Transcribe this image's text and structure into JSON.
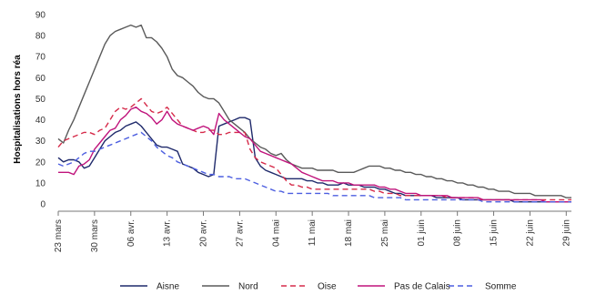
{
  "chart_data": {
    "type": "line",
    "ylabel": "Hospitalisations hors réa",
    "ylim": [
      0,
      90
    ],
    "yticks": [
      0,
      10,
      20,
      30,
      40,
      50,
      60,
      70,
      80,
      90
    ],
    "xticks": [
      "23 mars",
      "30 mars",
      "06 avr.",
      "13 avr.",
      "20 avr.",
      "27 avr.",
      "04 mai",
      "11 mai",
      "18 mai",
      "25 mai",
      "01 juin",
      "08 juin",
      "15 juin",
      "22 juin",
      "29 juin"
    ],
    "x": [
      "23 mars",
      "24 mars",
      "25 mars",
      "26 mars",
      "27 mars",
      "28 mars",
      "29 mars",
      "30 mars",
      "31 mars",
      "01 avr.",
      "02 avr.",
      "03 avr.",
      "04 avr.",
      "05 avr.",
      "06 avr.",
      "07 avr.",
      "08 avr.",
      "09 avr.",
      "10 avr.",
      "11 avr.",
      "12 avr.",
      "13 avr.",
      "14 avr.",
      "15 avr.",
      "16 avr.",
      "17 avr.",
      "18 avr.",
      "19 avr.",
      "20 avr.",
      "21 avr.",
      "22 avr.",
      "23 avr.",
      "24 avr.",
      "25 avr.",
      "26 avr.",
      "27 avr.",
      "28 avr.",
      "29 avr.",
      "30 avr.",
      "01 mai",
      "02 mai",
      "03 mai",
      "04 mai",
      "05 mai",
      "06 mai",
      "07 mai",
      "08 mai",
      "09 mai",
      "10 mai",
      "11 mai",
      "12 mai",
      "13 mai",
      "14 mai",
      "15 mai",
      "16 mai",
      "17 mai",
      "18 mai",
      "19 mai",
      "20 mai",
      "21 mai",
      "22 mai",
      "23 mai",
      "24 mai",
      "25 mai",
      "26 mai",
      "27 mai",
      "28 mai",
      "29 mai",
      "30 mai",
      "31 mai",
      "01 juin",
      "02 juin",
      "03 juin",
      "04 juin",
      "05 juin",
      "06 juin",
      "07 juin",
      "08 juin",
      "09 juin",
      "10 juin",
      "11 juin",
      "12 juin",
      "13 juin",
      "14 juin",
      "15 juin",
      "16 juin",
      "17 juin",
      "18 juin",
      "19 juin",
      "20 juin",
      "21 juin",
      "22 juin",
      "23 juin",
      "24 juin",
      "25 juin",
      "26 juin",
      "27 juin",
      "28 juin",
      "29 juin",
      "30 juin"
    ],
    "series": [
      {
        "name": "Aisne",
        "color": "#1f2a6b",
        "dash": "solid",
        "values": [
          22,
          20,
          21,
          21,
          20,
          17,
          18,
          22,
          26,
          30,
          32,
          34,
          35,
          37,
          38,
          39,
          37,
          34,
          31,
          28,
          27,
          27,
          26,
          25,
          19,
          18,
          17,
          15,
          14,
          13,
          14,
          37,
          38,
          39,
          40,
          41,
          41,
          40,
          22,
          18,
          16,
          15,
          14,
          13,
          12,
          12,
          12,
          12,
          11,
          11,
          10,
          10,
          9,
          9,
          9,
          10,
          9,
          9,
          9,
          8,
          8,
          8,
          7,
          7,
          6,
          5,
          5,
          4,
          4,
          4,
          4,
          4,
          4,
          3,
          3,
          3,
          3,
          3,
          2,
          2,
          2,
          2,
          2,
          2,
          2,
          2,
          2,
          2,
          1,
          1,
          1,
          1,
          1,
          1,
          1,
          1,
          1,
          1,
          1,
          1
        ]
      },
      {
        "name": "Nord",
        "color": "#5a5a5a",
        "dash": "solid",
        "values": [
          31,
          29,
          35,
          40,
          46,
          52,
          58,
          64,
          70,
          76,
          80,
          82,
          83,
          84,
          85,
          84,
          85,
          79,
          79,
          77,
          74,
          70,
          64,
          61,
          60,
          58,
          56,
          53,
          51,
          50,
          50,
          48,
          44,
          40,
          38,
          36,
          34,
          31,
          29,
          27,
          26,
          24,
          23,
          24,
          21,
          19,
          18,
          17,
          17,
          17,
          16,
          16,
          16,
          16,
          15,
          15,
          15,
          15,
          16,
          17,
          18,
          18,
          18,
          17,
          17,
          16,
          16,
          15,
          15,
          14,
          14,
          13,
          13,
          12,
          12,
          11,
          11,
          10,
          10,
          9,
          9,
          8,
          8,
          7,
          7,
          6,
          6,
          6,
          5,
          5,
          5,
          5,
          4,
          4,
          4,
          4,
          4,
          4,
          3,
          3
        ]
      },
      {
        "name": "Oise",
        "color": "#d62b4a",
        "dash": "dash",
        "values": [
          27,
          30,
          31,
          32,
          33,
          34,
          34,
          33,
          35,
          36,
          40,
          44,
          46,
          45,
          46,
          48,
          50,
          47,
          44,
          43,
          44,
          46,
          43,
          40,
          37,
          36,
          35,
          34,
          34,
          35,
          35,
          33,
          33,
          34,
          34,
          34,
          34,
          26,
          22,
          20,
          19,
          18,
          17,
          14,
          11,
          9,
          9,
          8,
          8,
          7,
          7,
          7,
          7,
          7,
          7,
          7,
          7,
          7,
          7,
          7,
          7,
          6,
          6,
          5,
          5,
          5,
          4,
          4,
          4,
          4,
          4,
          4,
          4,
          4,
          4,
          3,
          3,
          3,
          3,
          3,
          3,
          2,
          2,
          2,
          2,
          2,
          2,
          2,
          2,
          2,
          2,
          2,
          2,
          2,
          2,
          2,
          2,
          2,
          2,
          2
        ]
      },
      {
        "name": "Pas de Calais",
        "color": "#c0147c",
        "dash": "solid",
        "values": [
          15,
          15,
          15,
          14,
          18,
          19,
          21,
          26,
          29,
          32,
          35,
          36,
          40,
          42,
          45,
          46,
          44,
          43,
          41,
          38,
          40,
          44,
          40,
          38,
          37,
          36,
          35,
          36,
          37,
          36,
          33,
          43,
          40,
          38,
          36,
          34,
          32,
          31,
          28,
          25,
          24,
          23,
          22,
          21,
          20,
          19,
          17,
          15,
          14,
          13,
          12,
          11,
          11,
          11,
          10,
          10,
          10,
          9,
          9,
          9,
          9,
          9,
          8,
          8,
          7,
          7,
          6,
          5,
          5,
          5,
          4,
          4,
          4,
          4,
          4,
          4,
          3,
          3,
          3,
          3,
          3,
          3,
          2,
          2,
          2,
          2,
          2,
          2,
          2,
          2,
          2,
          2,
          2,
          2,
          1,
          1,
          1,
          1,
          1,
          1
        ]
      },
      {
        "name": "Somme",
        "color": "#4c5ee0",
        "dash": "dash",
        "values": [
          19,
          18,
          19,
          20,
          22,
          24,
          25,
          25,
          26,
          27,
          28,
          29,
          30,
          31,
          32,
          33,
          34,
          32,
          30,
          27,
          25,
          23,
          22,
          20,
          19,
          18,
          17,
          16,
          15,
          14,
          14,
          13,
          13,
          13,
          12,
          12,
          12,
          11,
          10,
          9,
          8,
          7,
          6,
          6,
          5,
          5,
          5,
          5,
          5,
          5,
          5,
          5,
          5,
          4,
          4,
          4,
          4,
          4,
          4,
          4,
          4,
          3,
          3,
          3,
          3,
          3,
          3,
          2,
          2,
          2,
          2,
          2,
          2,
          2,
          2,
          2,
          2,
          2,
          2,
          2,
          2,
          2,
          1,
          1,
          1,
          1,
          1,
          1,
          1,
          1,
          1,
          1,
          1,
          1,
          1,
          1,
          1,
          1,
          1,
          1
        ]
      }
    ],
    "legend_position": "bottom",
    "grid": false
  }
}
